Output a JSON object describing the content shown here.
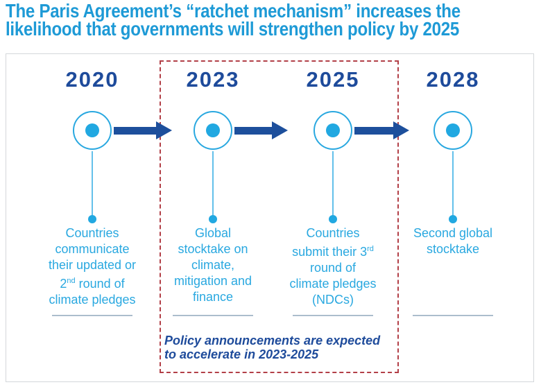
{
  "title": {
    "line1": "The Paris Agreement’s “ratchet mechanism” increases the",
    "line2": "likelihood that governments will strengthen policy by 2025"
  },
  "timeline": {
    "milestones": [
      {
        "year": "2020",
        "desc": {
          "l1": "Countries",
          "l2": "communicate",
          "l3": "their updated or",
          "l4_pre": "2",
          "l4_sup": "nd",
          "l4_post": " round of",
          "l5": "climate pledges"
        }
      },
      {
        "year": "2023",
        "desc": {
          "l1": "Global",
          "l2": "stocktake on",
          "l3": "climate,",
          "l4": "mitigation and",
          "l5": "finance"
        }
      },
      {
        "year": "2025",
        "desc": {
          "l1": "Countries",
          "l2_pre": "submit their 3",
          "l2_sup": "rd",
          "l3": "round of",
          "l4": "climate pledges",
          "l5": "(NDCs)"
        }
      },
      {
        "year": "2028",
        "desc": {
          "l1": "Second global",
          "l2": "stocktake"
        }
      }
    ]
  },
  "note": {
    "line1": "Policy announcements are expected",
    "line2": "to accelerate in 2023-2025"
  },
  "colors": {
    "title_blue": "#1E9AD6",
    "navy": "#1E4B9B",
    "arrow_navy": "#1D4F9C",
    "cyan": "#29A8E0",
    "dashed_red": "#B23F47",
    "panel_border": "#D4D7DA"
  }
}
